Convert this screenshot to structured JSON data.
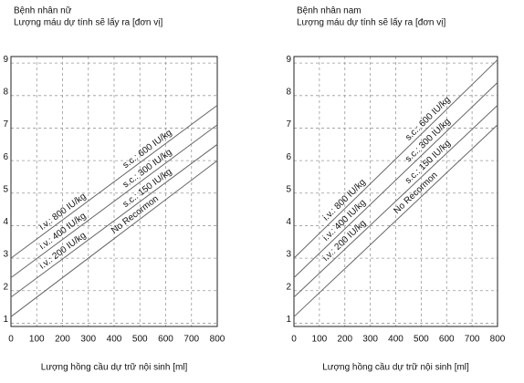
{
  "chart_data": [
    {
      "type": "line",
      "title": "Bệnh nhân nữ",
      "subtitle": "Lượng máu dự tính sẽ lấy ra [đơn vị]",
      "x_label": "Lượng hồng cầu dự trữ nội sinh [ml]",
      "x": [
        0,
        800
      ],
      "xlim": [
        0,
        800
      ],
      "xticks": [
        0,
        100,
        200,
        300,
        400,
        500,
        600,
        700,
        800
      ],
      "ylim": [
        0.9,
        9.2
      ],
      "yticks": [
        1,
        2,
        3,
        4,
        5,
        6,
        7,
        8,
        9
      ],
      "grid": true,
      "series": [
        {
          "color": "#666666",
          "values": [
            3.0,
            7.7
          ],
          "labels": [
            "i.v.: 800 IU/kg",
            "s.c.: 600 IU/kg"
          ]
        },
        {
          "color": "#666666",
          "values": [
            2.4,
            7.1
          ],
          "labels": [
            "i.v.: 400 IU/kg",
            "s.c.: 300 IU/kg"
          ]
        },
        {
          "color": "#666666",
          "values": [
            1.8,
            6.5
          ],
          "labels": [
            "i.v.: 200 IU/kg",
            "s.c.: 150 IU/kg"
          ]
        },
        {
          "color": "#666666",
          "values": [
            1.2,
            6.0
          ],
          "labels": [
            "No Recormon"
          ]
        }
      ]
    },
    {
      "type": "line",
      "title": "Bệnh nhân nam",
      "subtitle": "Lượng máu dự tính sẽ lấy ra [đơn vị]",
      "x_label": "Lượng hồng cầu dự trữ nội sinh [ml]",
      "x": [
        0,
        800
      ],
      "xlim": [
        0,
        800
      ],
      "xticks": [
        0,
        100,
        200,
        300,
        400,
        500,
        600,
        700,
        800
      ],
      "ylim": [
        0.9,
        9.2
      ],
      "yticks": [
        1,
        2,
        3,
        4,
        5,
        6,
        7,
        8,
        9
      ],
      "grid": true,
      "series": [
        {
          "color": "#666666",
          "values": [
            3.0,
            9.1
          ],
          "labels": [
            "i.v.: 800 IU/kg",
            "s.c.: 600 IU/kg"
          ]
        },
        {
          "color": "#666666",
          "values": [
            2.4,
            8.4
          ],
          "labels": [
            "i.v.: 400 IU/kg",
            "s.c.: 300 IU/kg"
          ]
        },
        {
          "color": "#666666",
          "values": [
            1.8,
            7.7
          ],
          "labels": [
            "i.v.: 200 IU/kg",
            "s.c.: 150 IU/kg"
          ]
        },
        {
          "color": "#666666",
          "values": [
            1.2,
            7.1
          ],
          "labels": [
            "No Recormon"
          ]
        }
      ]
    }
  ]
}
